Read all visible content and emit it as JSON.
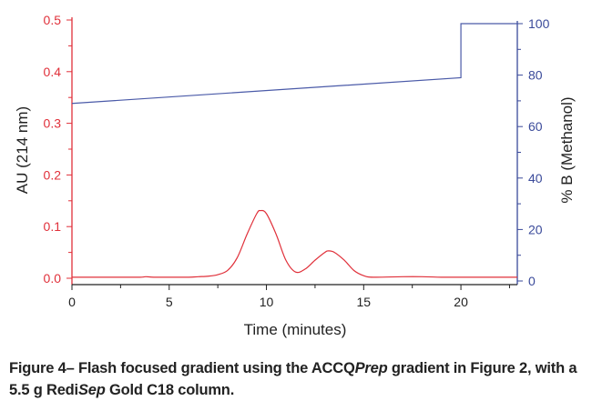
{
  "chart_data": {
    "type": "line",
    "xlabel": "Time (minutes)",
    "ylabel_left": "AU (214 nm)",
    "ylabel_right": "% B (Methanol)",
    "xlim": [
      0,
      22.9
    ],
    "ylim_left": [
      0,
      0.5
    ],
    "ylim_right": [
      0,
      100
    ],
    "x_ticks": [
      "0",
      "5",
      "10",
      "15",
      "20"
    ],
    "y_left_ticks": [
      "0.0",
      "0.1",
      "0.2",
      "0.3",
      "0.4",
      "0.5"
    ],
    "y_right_ticks": [
      "0",
      "20",
      "40",
      "60",
      "80",
      "100"
    ],
    "grid": false,
    "colors": {
      "absorbance": "#e0303a",
      "gradient": "#4a5aa8",
      "left_axis": "#e0303a",
      "right_axis": "#3a4a9a"
    },
    "series": [
      {
        "name": "Absorbance (AU, 214 nm)",
        "axis": "left",
        "x": [
          0,
          2,
          3.5,
          3.8,
          4.2,
          5,
          6,
          6.5,
          7,
          7.5,
          8,
          8.5,
          9,
          9.5,
          9.7,
          10,
          10.5,
          11,
          11.5,
          12,
          12.5,
          13,
          13.2,
          13.5,
          14,
          14.5,
          15,
          15.5,
          17,
          18,
          19,
          20,
          22.9
        ],
        "y": [
          0.002,
          0.002,
          0.002,
          0.003,
          0.002,
          0.002,
          0.002,
          0.003,
          0.004,
          0.007,
          0.015,
          0.04,
          0.085,
          0.125,
          0.131,
          0.125,
          0.085,
          0.035,
          0.012,
          0.018,
          0.035,
          0.05,
          0.053,
          0.05,
          0.035,
          0.015,
          0.005,
          0.002,
          0.003,
          0.003,
          0.002,
          0.002,
          0.002
        ]
      },
      {
        "name": "% B (Methanol)",
        "axis": "right",
        "x": [
          0,
          20,
          20,
          22.9
        ],
        "y": [
          69,
          79,
          100,
          100
        ]
      }
    ]
  },
  "caption": {
    "part1": "Figure 4– Flash focused gradient using the ACCQ",
    "part2": "Prep",
    "part3": " gradient in Figure 2, with a 5.5 g Redi",
    "part4": "Sep",
    "part5": " Gold C18 column."
  }
}
